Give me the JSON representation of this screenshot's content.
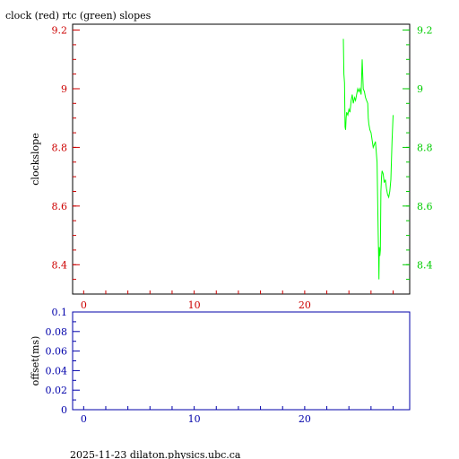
{
  "title": "clock (red) rtc (green) slopes",
  "footer": "2025-11-23  dilaton.physics.ubc.ca",
  "colors": {
    "clock": "#ff0000",
    "rtc": "#00ff00",
    "offset_axis": "#0000aa",
    "frame": "#000000",
    "clock_axis": "#cc0000",
    "rtc_axis": "#00cc00"
  },
  "chart_data": [
    {
      "type": "line",
      "title": "clock (red) rtc (green) slopes",
      "ylabel": "clockslope",
      "xlabel": "",
      "xlim": [
        -1,
        29.5
      ],
      "ylim": [
        8.3,
        9.22
      ],
      "x_ticks": [
        0,
        10,
        20
      ],
      "y_ticks_left": [
        9.2,
        9,
        8.8,
        8.6,
        8.4
      ],
      "y_tick_labels_left": [
        "9.2",
        "9",
        "8.8",
        "8.6",
        "8.4"
      ],
      "y_ticks_right": [
        9.2,
        9,
        8.8,
        8.6,
        8.4
      ],
      "y_tick_labels_right": [
        "9.2",
        "9",
        "8.8",
        "8.6",
        "8.4"
      ],
      "grid": false,
      "series": [
        {
          "name": "rtc",
          "x": [
            23.5,
            23.55,
            23.6,
            23.65,
            23.7,
            23.75,
            23.8,
            23.9,
            24.0,
            24.1,
            24.2,
            24.3,
            24.4,
            24.5,
            24.6,
            24.7,
            24.8,
            24.9,
            25.0,
            25.1,
            25.2,
            25.3,
            25.4,
            25.5,
            25.6,
            25.7,
            25.75,
            25.8,
            25.85,
            25.9,
            26.0,
            26.2,
            26.4,
            26.55,
            26.65,
            26.7,
            26.72,
            26.75,
            26.8,
            26.85,
            26.9,
            26.95,
            27.0,
            27.1,
            27.2,
            27.3,
            27.4,
            27.5,
            27.6,
            27.7,
            27.8,
            27.9,
            28.0
          ],
          "y": [
            9.17,
            9.05,
            9.02,
            8.87,
            8.86,
            8.9,
            8.92,
            8.91,
            8.93,
            8.92,
            8.96,
            8.98,
            8.95,
            8.97,
            8.96,
            8.98,
            9.0,
            8.99,
            9.0,
            8.98,
            9.1,
            9.0,
            8.99,
            8.97,
            8.96,
            8.95,
            8.9,
            8.88,
            8.87,
            8.86,
            8.85,
            8.8,
            8.82,
            8.75,
            8.5,
            8.4,
            8.35,
            8.46,
            8.43,
            8.45,
            8.65,
            8.7,
            8.72,
            8.71,
            8.68,
            8.69,
            8.66,
            8.64,
            8.63,
            8.65,
            8.69,
            8.82,
            8.91
          ]
        }
      ]
    },
    {
      "type": "line",
      "ylabel": "offset(ms)",
      "xlabel": "",
      "xlim": [
        -1,
        29.5
      ],
      "ylim": [
        0,
        0.1
      ],
      "x_ticks": [
        0,
        10,
        20
      ],
      "y_ticks": [
        0.1,
        0.08,
        0.06,
        0.04,
        0.02,
        0
      ],
      "y_tick_labels": [
        "0.1",
        "0.08",
        "0.06",
        "0.04",
        "0.02",
        "0"
      ],
      "grid": false,
      "series": []
    }
  ]
}
